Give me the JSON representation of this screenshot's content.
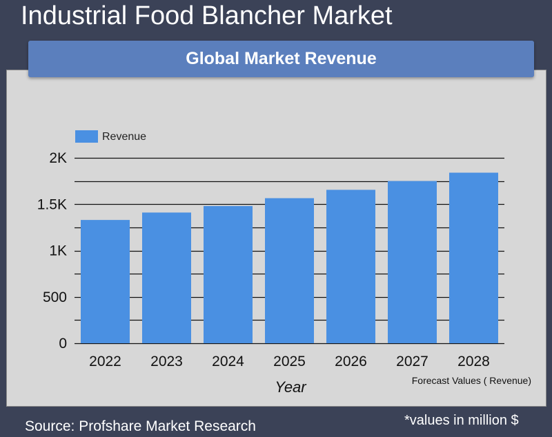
{
  "header": {
    "title": "Industrial Food Blancher Market",
    "banner": "Global Market Revenue"
  },
  "footer": {
    "source": "Source: Profshare Market Research",
    "units_note": "*values in million $"
  },
  "chart_data": {
    "type": "bar",
    "categories": [
      "2022",
      "2023",
      "2024",
      "2025",
      "2026",
      "2027",
      "2028"
    ],
    "series": [
      {
        "name": "Revenue",
        "values": [
          1330,
          1410,
          1480,
          1565,
          1655,
          1750,
          1840
        ],
        "color": "#4a90e2"
      }
    ],
    "xlabel": "Year",
    "ylabel": "",
    "ylim": [
      0,
      2000
    ],
    "yticks": [
      0,
      500,
      1000,
      1500,
      2000
    ],
    "ytick_labels": [
      "0",
      "500",
      "1K",
      "1.5K",
      "2K"
    ],
    "grid": true,
    "legend_position": "top-left",
    "annotation": "Forecast Values ( Revenue)"
  }
}
